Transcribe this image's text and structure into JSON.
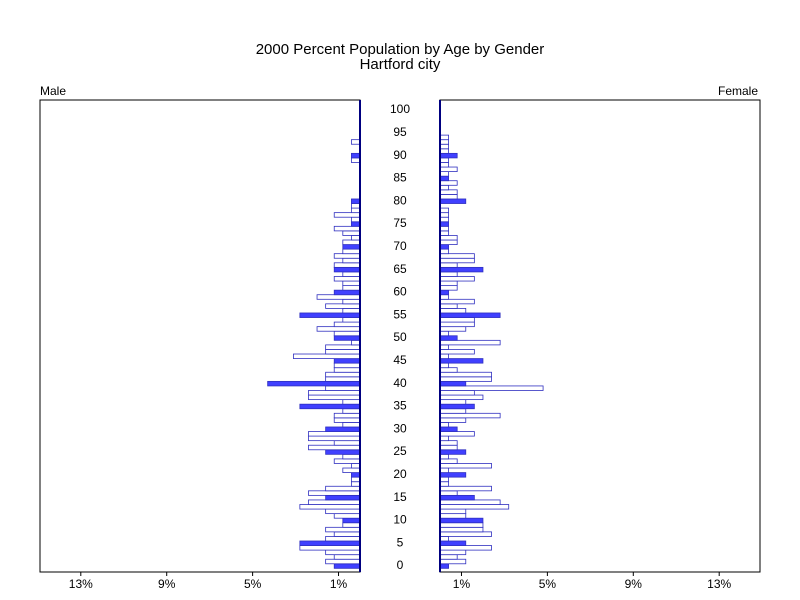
{
  "chart_data": {
    "type": "pyramid",
    "title": "2000 Percent Population by Age by Gender",
    "subtitle": "Hartford city",
    "y": [
      0,
      1,
      2,
      3,
      4,
      5,
      6,
      7,
      8,
      9,
      10,
      11,
      12,
      13,
      14,
      15,
      16,
      17,
      18,
      19,
      20,
      21,
      22,
      23,
      24,
      25,
      26,
      27,
      28,
      29,
      30,
      31,
      32,
      33,
      34,
      35,
      36,
      37,
      38,
      39,
      40,
      41,
      42,
      43,
      44,
      45,
      46,
      47,
      48,
      49,
      50,
      51,
      52,
      53,
      54,
      55,
      56,
      57,
      58,
      59,
      60,
      61,
      62,
      63,
      64,
      65,
      66,
      67,
      68,
      69,
      70,
      71,
      72,
      73,
      74,
      75,
      76,
      77,
      78,
      79,
      80,
      81,
      82,
      83,
      84,
      85,
      86,
      87,
      88,
      89,
      90,
      91,
      92,
      93,
      94
    ],
    "series": [
      {
        "name": "Male",
        "color": "#3030c0",
        "highlight_color": "#4040ff",
        "values": [
          1.2,
          1.6,
          1.2,
          1.6,
          2.8,
          2.8,
          1.6,
          1.2,
          1.6,
          0.8,
          0.8,
          1.2,
          1.6,
          2.8,
          2.4,
          1.6,
          2.4,
          1.6,
          0.4,
          0.4,
          0.4,
          0.8,
          0.4,
          1.2,
          0.8,
          1.6,
          2.4,
          1.2,
          2.4,
          2.4,
          1.6,
          0.8,
          1.2,
          1.2,
          0.8,
          2.8,
          0.8,
          2.4,
          2.4,
          1.6,
          4.3,
          1.6,
          1.6,
          1.2,
          1.2,
          1.2,
          3.1,
          1.6,
          1.6,
          0.4,
          1.2,
          1.2,
          2.0,
          1.2,
          0.8,
          2.8,
          0.8,
          1.6,
          0.8,
          2.0,
          1.2,
          0.8,
          0.8,
          1.2,
          0.8,
          1.2,
          1.2,
          0.8,
          1.2,
          0.8,
          0.8,
          0.8,
          0.4,
          0.8,
          1.2,
          0.4,
          0.4,
          1.2,
          0.4,
          0.4,
          0.4,
          0,
          0,
          0,
          0,
          0,
          0,
          0,
          0,
          0.4,
          0.4,
          0,
          0,
          0.4,
          0
        ]
      },
      {
        "name": "Female",
        "color": "#3030c0",
        "highlight_color": "#4040ff",
        "values": [
          0.4,
          1.2,
          0.8,
          1.2,
          2.4,
          1.2,
          0.4,
          2.4,
          2.0,
          2.0,
          2.0,
          1.2,
          1.2,
          3.2,
          2.8,
          1.6,
          0.8,
          2.4,
          0.4,
          0.4,
          1.2,
          0.4,
          2.4,
          0.8,
          0.4,
          1.2,
          0.8,
          0.8,
          0.4,
          1.6,
          0.8,
          0.4,
          1.2,
          2.8,
          1.2,
          1.6,
          1.2,
          2.0,
          1.6,
          4.8,
          1.2,
          2.4,
          2.4,
          0.8,
          0.4,
          2.0,
          0.4,
          1.6,
          0.4,
          2.8,
          0.8,
          0.4,
          1.2,
          1.6,
          1.6,
          2.8,
          1.2,
          0.8,
          1.6,
          0.4,
          0.4,
          0.8,
          0.8,
          1.6,
          0.8,
          2.0,
          0.8,
          1.6,
          1.6,
          0.4,
          0.4,
          0.8,
          0.8,
          0.4,
          0.4,
          0.4,
          0.4,
          0.4,
          0.4,
          0,
          1.2,
          0.8,
          0.8,
          0.4,
          0.8,
          0.4,
          0.4,
          0.8,
          0.4,
          0.4,
          0.8,
          0.4,
          0.4,
          0.4,
          0.4
        ]
      }
    ],
    "xlim": [
      0,
      14.9
    ],
    "xticks": [
      {
        "value": 1,
        "label": "1%"
      },
      {
        "value": 5,
        "label": "5%"
      },
      {
        "value": 9,
        "label": "9%"
      },
      {
        "value": 13,
        "label": "13%"
      }
    ],
    "ylim": [
      -1.3,
      102.2
    ],
    "yticks": [
      0,
      5,
      10,
      15,
      20,
      25,
      30,
      35,
      40,
      45,
      50,
      55,
      60,
      65,
      70,
      75,
      80,
      85,
      90,
      95,
      100
    ]
  }
}
